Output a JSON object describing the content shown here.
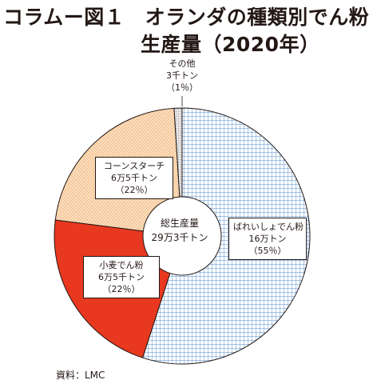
{
  "title": {
    "line1": "コラムー図１　オランダの種類別でん粉",
    "line2": "生産量（2020年）"
  },
  "center": {
    "label": "総生産量",
    "value": "29万3千トン"
  },
  "source": "資料：LMC",
  "colors": {
    "potato": "#a7c4e8",
    "wheat": "#e8381f",
    "corn": "#f6c99a",
    "other": "#d9d9d9",
    "stroke": "#231815"
  },
  "chart_data": {
    "type": "pie",
    "total": "29万3千トン",
    "slices": [
      {
        "name": "ばれいしょでん粉",
        "amount": "16万トン",
        "pct_label": "（55％）",
        "value": 55,
        "color": "#a7c4e8",
        "pattern": "grid"
      },
      {
        "name": "小麦でん粉",
        "amount": "6万5千トン",
        "pct_label": "（22％）",
        "value": 22,
        "color": "#e8381f",
        "pattern": "solid"
      },
      {
        "name": "コーンスターチ",
        "amount": "6万5千トン",
        "pct_label": "（22％）",
        "value": 22,
        "color": "#f6c99a",
        "pattern": "dots"
      },
      {
        "name": "その他",
        "amount": "3千トン",
        "pct_label": "（1％）",
        "value": 1,
        "color": "#d9d9d9",
        "pattern": "dots"
      }
    ]
  }
}
